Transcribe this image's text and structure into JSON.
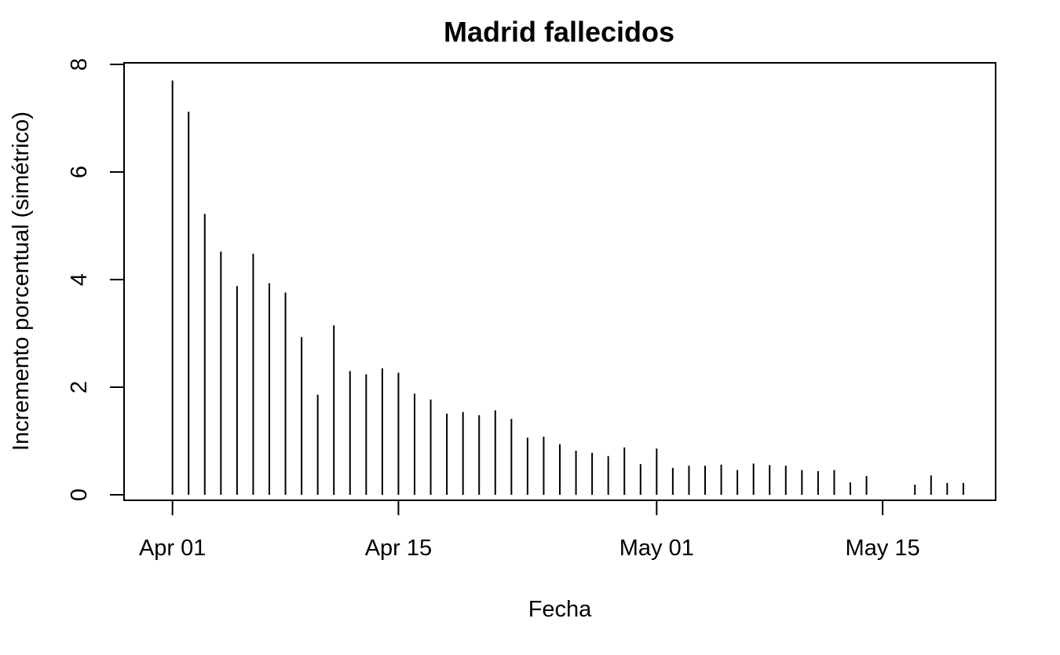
{
  "chart_data": {
    "type": "bar",
    "style": "histogram-spikes",
    "title": "Madrid fallecidos",
    "xlabel": "Fecha",
    "ylabel": "Incremento porcentual (simétrico)",
    "ylim": [
      0,
      8
    ],
    "xlim": [
      "2020-03-29",
      "2020-05-22"
    ],
    "yticks": [
      0,
      2,
      4,
      6,
      8
    ],
    "xticks": [
      {
        "date": "2020-04-01",
        "label": "Apr 01"
      },
      {
        "date": "2020-04-15",
        "label": "Apr 15"
      },
      {
        "date": "2020-05-01",
        "label": "May 01"
      },
      {
        "date": "2020-05-15",
        "label": "May 15"
      }
    ],
    "grid": false,
    "color": "#000000",
    "series": [
      {
        "x": [
          "2020-04-01",
          "2020-04-02",
          "2020-04-03",
          "2020-04-04",
          "2020-04-05",
          "2020-04-06",
          "2020-04-07",
          "2020-04-08",
          "2020-04-09",
          "2020-04-10",
          "2020-04-11",
          "2020-04-12",
          "2020-04-13",
          "2020-04-14",
          "2020-04-15",
          "2020-04-16",
          "2020-04-17",
          "2020-04-18",
          "2020-04-19",
          "2020-04-20",
          "2020-04-21",
          "2020-04-22",
          "2020-04-23",
          "2020-04-24",
          "2020-04-25",
          "2020-04-26",
          "2020-04-27",
          "2020-04-28",
          "2020-04-29",
          "2020-04-30",
          "2020-05-01",
          "2020-05-02",
          "2020-05-03",
          "2020-05-04",
          "2020-05-05",
          "2020-05-06",
          "2020-05-07",
          "2020-05-08",
          "2020-05-09",
          "2020-05-10",
          "2020-05-11",
          "2020-05-12",
          "2020-05-13",
          "2020-05-14",
          "2020-05-15",
          "2020-05-16",
          "2020-05-17",
          "2020-05-18",
          "2020-05-19",
          "2020-05-20"
        ],
        "values": [
          7.7,
          7.12,
          5.22,
          4.52,
          3.88,
          4.48,
          3.93,
          3.76,
          2.93,
          1.86,
          3.15,
          2.3,
          2.24,
          2.35,
          2.27,
          1.88,
          1.77,
          1.51,
          1.54,
          1.48,
          1.57,
          1.41,
          1.06,
          1.08,
          0.94,
          0.82,
          0.78,
          0.72,
          0.88,
          0.57,
          0.86,
          0.5,
          0.54,
          0.54,
          0.56,
          0.46,
          0.58,
          0.55,
          0.54,
          0.46,
          0.44,
          0.46,
          0.23,
          0.35,
          0.0,
          0.0,
          0.19,
          0.36,
          0.22,
          0.22
        ]
      }
    ]
  }
}
